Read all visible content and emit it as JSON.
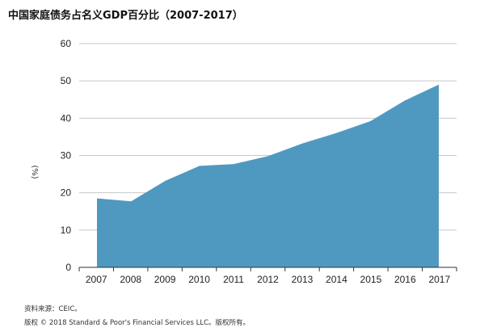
{
  "chart_data": {
    "type": "area",
    "title": "中国家庭债务占名义GDP百分比（2007-2017）",
    "xlabel": "",
    "ylabel": "(%)",
    "categories": [
      "2007",
      "2008",
      "2009",
      "2010",
      "2011",
      "2012",
      "2013",
      "2014",
      "2015",
      "2016",
      "2017"
    ],
    "series": [
      {
        "values": [
          18.5,
          17.7,
          23.2,
          27.2,
          27.7,
          29.8,
          33.2,
          36.0,
          39.2,
          44.7,
          49.0
        ],
        "color": "#4f99c1"
      }
    ],
    "ylim": [
      0,
      60
    ],
    "yticks": [
      "0",
      "10",
      "20",
      "30",
      "40",
      "50",
      "60"
    ],
    "grid": "horizontal",
    "legend": "none"
  },
  "footnotes": {
    "source": "资料来源：CEIC。",
    "copyright": "版权 © 2018  Standard & Poor's Financial Services LLC。版权所有。"
  },
  "colors": {
    "area": "#4f99c1",
    "grid": "#c8c8c8",
    "axis": "#333333"
  }
}
